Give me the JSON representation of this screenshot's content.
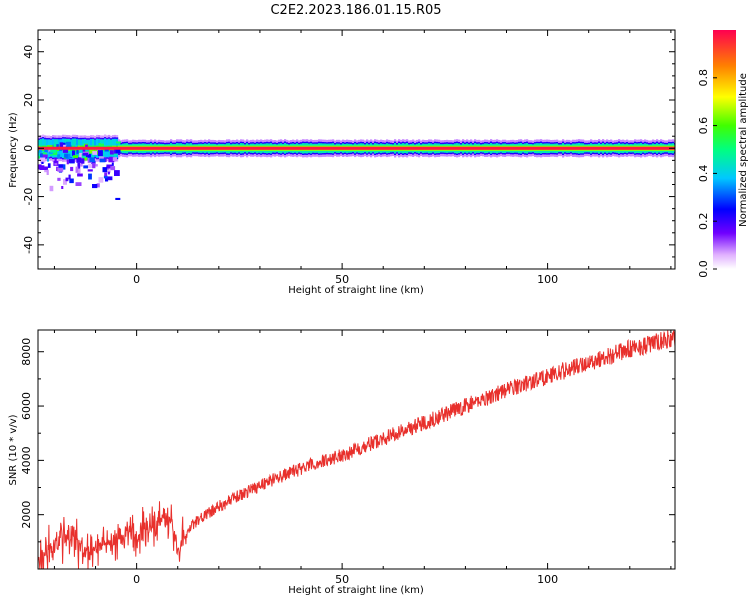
{
  "figure_title": "C2E2.2023.186.01.15.R05",
  "chart_data": [
    {
      "type": "heatmap",
      "xlabel": "Height of straight line (km)",
      "ylabel": "Frequency (Hz)",
      "xlim": [
        -24,
        131
      ],
      "ylim": [
        -50,
        49
      ],
      "x_ticks": [
        0,
        50,
        100
      ],
      "y_ticks": [
        -40,
        -20,
        0,
        20,
        40
      ],
      "grid": false,
      "colorbar": {
        "label": "Normalized spectral amplitude",
        "range": [
          0,
          1
        ],
        "ticks": [
          0.0,
          0.2,
          0.4,
          0.6,
          0.8
        ],
        "tick_labels": [
          "0.0",
          "0.2",
          "0.4",
          "0.6",
          "0.8"
        ]
      },
      "features": {
        "carrier_frequency_hz": 0,
        "carrier_amplitude": 1.0,
        "noisy_region_x": [
          -24,
          -5
        ],
        "noisy_region_freq_spread_hz": [
          -22,
          6
        ]
      }
    },
    {
      "type": "line",
      "xlabel": "Height of straight line (km)",
      "ylabel": "SNR (10 * v/v)",
      "xlim": [
        -24,
        131
      ],
      "ylim": [
        0,
        8800
      ],
      "x_ticks": [
        0,
        50,
        100
      ],
      "y_ticks": [
        2000,
        4000,
        6000,
        8000
      ],
      "grid": false,
      "series": [
        {
          "color": "#e8302c",
          "x": [
            -24,
            -20,
            -16,
            -12,
            -8,
            -4,
            0,
            4,
            8,
            10,
            14,
            20,
            30,
            40,
            50,
            60,
            70,
            80,
            90,
            100,
            110,
            120,
            131
          ],
          "values": [
            300,
            900,
            1200,
            700,
            900,
            1100,
            1300,
            1600,
            1900,
            800,
            1700,
            2300,
            3100,
            3700,
            4200,
            4800,
            5400,
            6000,
            6600,
            7100,
            7600,
            8100,
            8500
          ]
        }
      ]
    }
  ]
}
